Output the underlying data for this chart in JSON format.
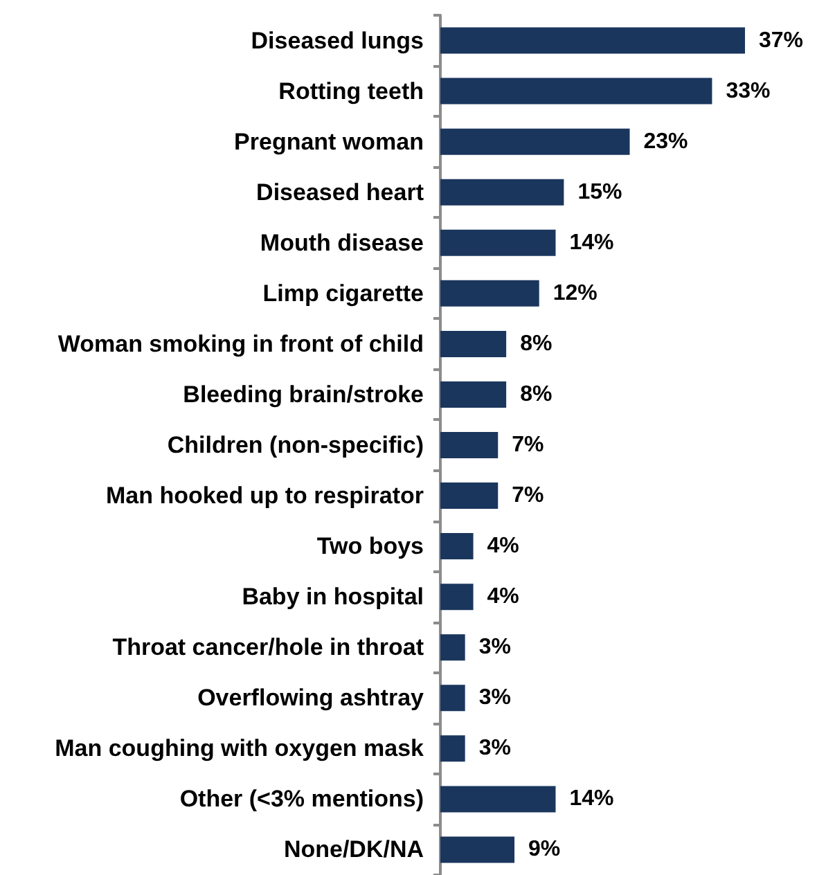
{
  "chart_data": {
    "type": "bar",
    "orientation": "horizontal",
    "categories": [
      "Diseased lungs",
      "Rotting teeth",
      "Pregnant woman",
      "Diseased heart",
      "Mouth disease",
      "Limp cigarette",
      "Woman smoking in front of child",
      "Bleeding brain/stroke",
      "Children (non-specific)",
      "Man hooked up to respirator",
      "Two boys",
      "Baby in hospital",
      "Throat cancer/hole in throat",
      "Overflowing ashtray",
      "Man coughing with oxygen mask",
      "Other (<3% mentions)",
      "None/DK/NA"
    ],
    "values": [
      37,
      33,
      23,
      15,
      14,
      12,
      8,
      8,
      7,
      7,
      4,
      4,
      3,
      3,
      3,
      14,
      9
    ],
    "value_labels": [
      "37%",
      "33%",
      "23%",
      "15%",
      "14%",
      "12%",
      "8%",
      "8%",
      "7%",
      "7%",
      "4%",
      "4%",
      "3%",
      "3%",
      "3%",
      "14%",
      "9%"
    ],
    "color": "#1b365d"
  }
}
